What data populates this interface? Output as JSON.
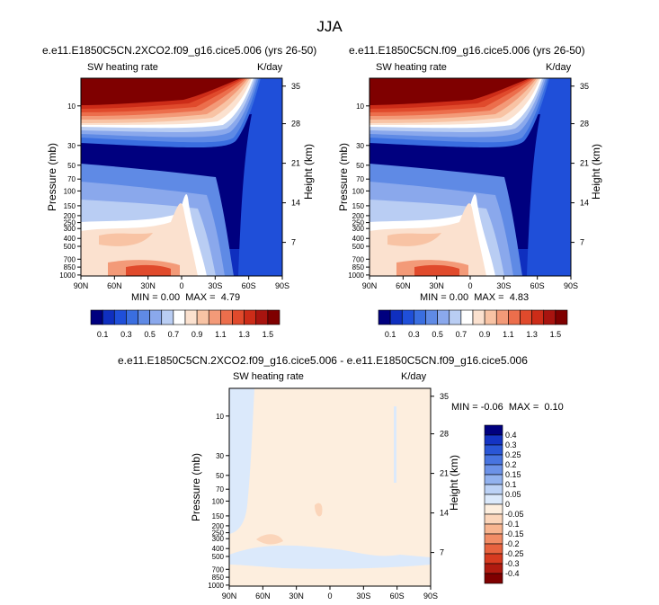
{
  "page": {
    "season": "JJA"
  },
  "colorbar_main": {
    "colors": [
      "#00007f",
      "#0f2fbf",
      "#1f4fd9",
      "#3a6ee0",
      "#5f8ae5",
      "#8aa8ec",
      "#b9cdf3",
      "#ffffff",
      "#fbe1cf",
      "#f8c3a4",
      "#f39a78",
      "#ec6e4c",
      "#e04a2c",
      "#cc2c18",
      "#a8140f",
      "#7f0000"
    ],
    "labels": [
      "0.1",
      "0.3",
      "0.5",
      "0.7",
      "0.9",
      "1.1",
      "1.3",
      "1.5"
    ]
  },
  "colorbar_diff": {
    "colors": [
      "#00007f",
      "#1434c4",
      "#2a56d6",
      "#4874e0",
      "#6c92e8",
      "#92b2ef",
      "#bcd2f6",
      "#dbe9fb",
      "#fdeede",
      "#fbd5ba",
      "#f8b590",
      "#f28d66",
      "#e8633f",
      "#d73b20",
      "#b01b10",
      "#7f0000"
    ],
    "labels": [
      "0.4",
      "0.3",
      "0.25",
      "0.2",
      "0.15",
      "0.1",
      "0.05",
      "0",
      "-0.05",
      "-0.1",
      "-0.15",
      "-0.2",
      "-0.25",
      "-0.3",
      "-0.4"
    ]
  },
  "chart_data": [
    {
      "type": "heatmap",
      "title": "e.e11.E1850C5CN.2XCO2.f09_g16.cice5.006 (yrs 26-50)",
      "left_label": "SW heating rate",
      "units": "K/day",
      "xlabel": "",
      "ylabel": "Pressure (mb)",
      "y2label": "Height (km)",
      "x_ticks": [
        "90N",
        "60N",
        "30N",
        "0",
        "30S",
        "60S",
        "90S"
      ],
      "y_ticks": [
        "10",
        "30",
        "50",
        "70",
        "100",
        "150",
        "200",
        "250",
        "300",
        "400",
        "500",
        "700",
        "850",
        "1000"
      ],
      "y2_ticks": [
        "35",
        "28",
        "21",
        "14",
        "7"
      ],
      "min_label": "MIN =",
      "min": "0.00",
      "max_label": "MAX =",
      "max": "4.79",
      "colorbar": "main"
    },
    {
      "type": "heatmap",
      "title": "e.e11.E1850C5CN.f09_g16.cice5.006 (yrs 26-50)",
      "left_label": "SW heating rate",
      "units": "K/day",
      "xlabel": "",
      "ylabel": "Pressure (mb)",
      "y2label": "Height (km)",
      "x_ticks": [
        "90N",
        "60N",
        "30N",
        "0",
        "30S",
        "60S",
        "90S"
      ],
      "y_ticks": [
        "10",
        "30",
        "50",
        "70",
        "100",
        "150",
        "200",
        "250",
        "300",
        "400",
        "500",
        "700",
        "850",
        "1000"
      ],
      "y2_ticks": [
        "35",
        "28",
        "21",
        "14",
        "7"
      ],
      "min_label": "MIN =",
      "min": "0.00",
      "max_label": "MAX =",
      "max": "4.83",
      "colorbar": "main"
    },
    {
      "type": "heatmap",
      "title": "e.e11.E1850C5CN.2XCO2.f09_g16.cice5.006 - e.e11.E1850C5CN.f09_g16.cice5.006",
      "left_label": "SW heating rate",
      "units": "K/day",
      "xlabel": "",
      "ylabel": "Pressure (mb)",
      "y2label": "Height (km)",
      "x_ticks": [
        "90N",
        "60N",
        "30N",
        "0",
        "30S",
        "60S",
        "90S"
      ],
      "y_ticks": [
        "10",
        "30",
        "50",
        "70",
        "100",
        "150",
        "200",
        "250",
        "300",
        "400",
        "500",
        "700",
        "850",
        "1000"
      ],
      "y2_ticks": [
        "35",
        "28",
        "21",
        "14",
        "7"
      ],
      "min_label": "MIN =",
      "min": "-0.06",
      "max_label": "MAX =",
      "max": "0.10",
      "colorbar": "diff"
    }
  ]
}
